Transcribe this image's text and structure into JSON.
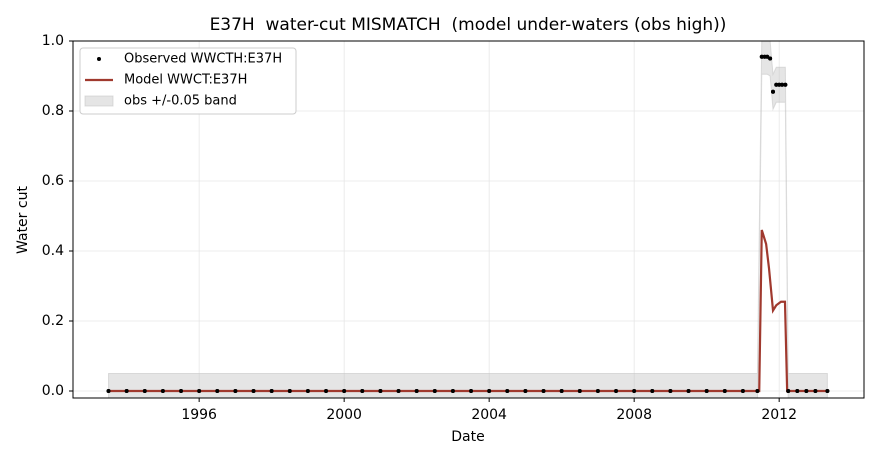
{
  "chart_data": {
    "type": "line",
    "title": "E37H  water-cut MISMATCH  (model under-waters (obs high))",
    "x_label": "Date",
    "y_label": "Water cut",
    "xlim": [
      1992.52,
      2014.34
    ],
    "xticks": [
      1996,
      2000,
      2004,
      2008,
      2012
    ],
    "ylim": [
      -0.02,
      1.0
    ],
    "yticks": [
      {
        "value": 0,
        "label": "0.0"
      },
      0.2,
      0.4,
      0.6,
      {
        "value": 0.8,
        "label": "0.8"
      },
      {
        "value": 1,
        "label": "1.0"
      }
    ],
    "grid": true,
    "legend": "upper left",
    "band": 0.05,
    "band_label": "obs +/-0.05 band",
    "band_color": "#bfbfbf",
    "series": [
      {
        "name": "Observed WWCTH:E37H",
        "kind": "scatter",
        "color": "#000000",
        "x": [
          1993.5,
          1994,
          1994.5,
          1995,
          1995.5,
          1996,
          1996.5,
          1997,
          1997.5,
          1998,
          1998.5,
          1999,
          1999.5,
          2000,
          2000.5,
          2001,
          2001.5,
          2002,
          2002.5,
          2003,
          2003.5,
          2004,
          2004.5,
          2005,
          2005.5,
          2006,
          2006.5,
          2007,
          2007.5,
          2008,
          2008.5,
          2009,
          2009.5,
          2010,
          2010.5,
          2011,
          2011.4,
          2011.52,
          2011.6,
          2011.67,
          2011.75,
          2011.83,
          2011.92,
          2012.0,
          2012.08,
          2012.17,
          2012.25,
          2012.5,
          2012.75,
          2013.0,
          2013.33
        ],
        "values": [
          0,
          0,
          0,
          0,
          0,
          0,
          0,
          0,
          0,
          0,
          0,
          0,
          0,
          0,
          0,
          0,
          0,
          0,
          0,
          0,
          0,
          0,
          0,
          0,
          0,
          0,
          0,
          0,
          0,
          0,
          0,
          0,
          0,
          0,
          0,
          0,
          0,
          0.955,
          0.955,
          0.955,
          0.95,
          0.855,
          0.875,
          0.875,
          0.875,
          0.875,
          0,
          0,
          0,
          0,
          0
        ]
      },
      {
        "name": "Model WWCT:E37H",
        "kind": "line",
        "color": "#a0392e",
        "x": [
          1993.5,
          2011.45,
          2011.52,
          2011.64,
          2011.72,
          2011.83,
          2011.92,
          2012.05,
          2012.16,
          2012.22,
          2013.33
        ],
        "values": [
          0,
          0,
          0.46,
          0.42,
          0.35,
          0.23,
          0.245,
          0.255,
          0.255,
          0,
          0
        ]
      }
    ]
  }
}
